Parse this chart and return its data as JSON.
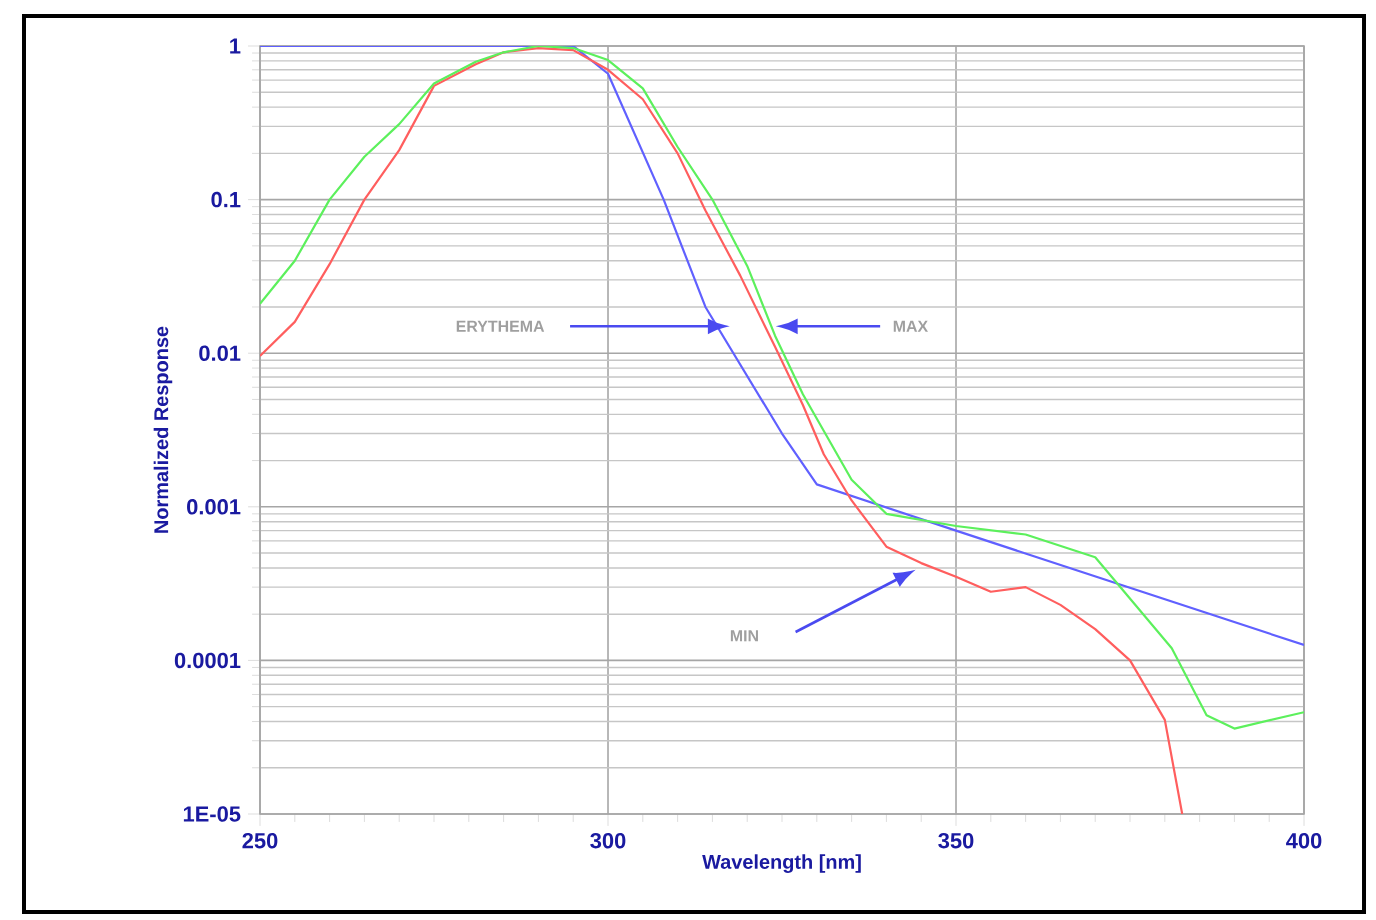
{
  "chart_data": {
    "type": "line",
    "xlabel": "Wavelength [nm]",
    "ylabel": "Normalized Response",
    "xlim": [
      250,
      400
    ],
    "xticks": [
      250,
      300,
      350,
      400
    ],
    "ylim": [
      1e-05,
      1
    ],
    "yticks": [
      {
        "value": 1e-05,
        "label": "1E-05"
      },
      0.0001,
      0.001,
      0.01,
      0.1,
      1
    ],
    "log": "y",
    "grid": true,
    "marker": "none",
    "line_style": "solid",
    "series": [
      {
        "color": "#6060ff",
        "x": [
          250,
          295,
          300,
          308,
          314,
          325,
          330,
          350,
          400
        ],
        "values": [
          1,
          1,
          0.66,
          0.1,
          0.02,
          0.003,
          0.0014,
          0.0007,
          0.000126
        ]
      },
      {
        "color": "#ff5e5e",
        "x": [
          250,
          255,
          260,
          265,
          270,
          275,
          281,
          285,
          290,
          295,
          300,
          305,
          310,
          314,
          319,
          324,
          328,
          331,
          335,
          340,
          345,
          350,
          355,
          360,
          365,
          370,
          375,
          380,
          382.5
        ],
        "values": [
          0.0096,
          0.016,
          0.038,
          0.1,
          0.21,
          0.55,
          0.76,
          0.91,
          0.97,
          0.94,
          0.7,
          0.45,
          0.2,
          0.085,
          0.032,
          0.011,
          0.0046,
          0.0022,
          0.0011,
          0.00055,
          0.00043,
          0.00035,
          0.00028,
          0.0003,
          0.00023,
          0.00016,
          0.0001,
          4.1e-05,
          1e-05
        ]
      },
      {
        "color": "#5cf05c",
        "x": [
          250,
          255,
          260,
          265,
          270,
          275,
          281,
          285,
          290,
          295,
          300,
          305,
          310,
          315,
          320,
          324,
          328,
          335,
          340,
          350,
          360,
          370,
          381,
          386,
          390,
          400
        ],
        "values": [
          0.021,
          0.04,
          0.1,
          0.19,
          0.31,
          0.57,
          0.79,
          0.91,
          1,
          0.97,
          0.81,
          0.53,
          0.22,
          0.1,
          0.037,
          0.013,
          0.0054,
          0.0015,
          0.0009,
          0.00075,
          0.00066,
          0.00047,
          0.00012,
          4.4e-05,
          3.6e-05,
          4.6e-05
        ]
      }
    ],
    "annotations": [
      "ERYTHEMA",
      "MAX",
      "MIN"
    ]
  }
}
